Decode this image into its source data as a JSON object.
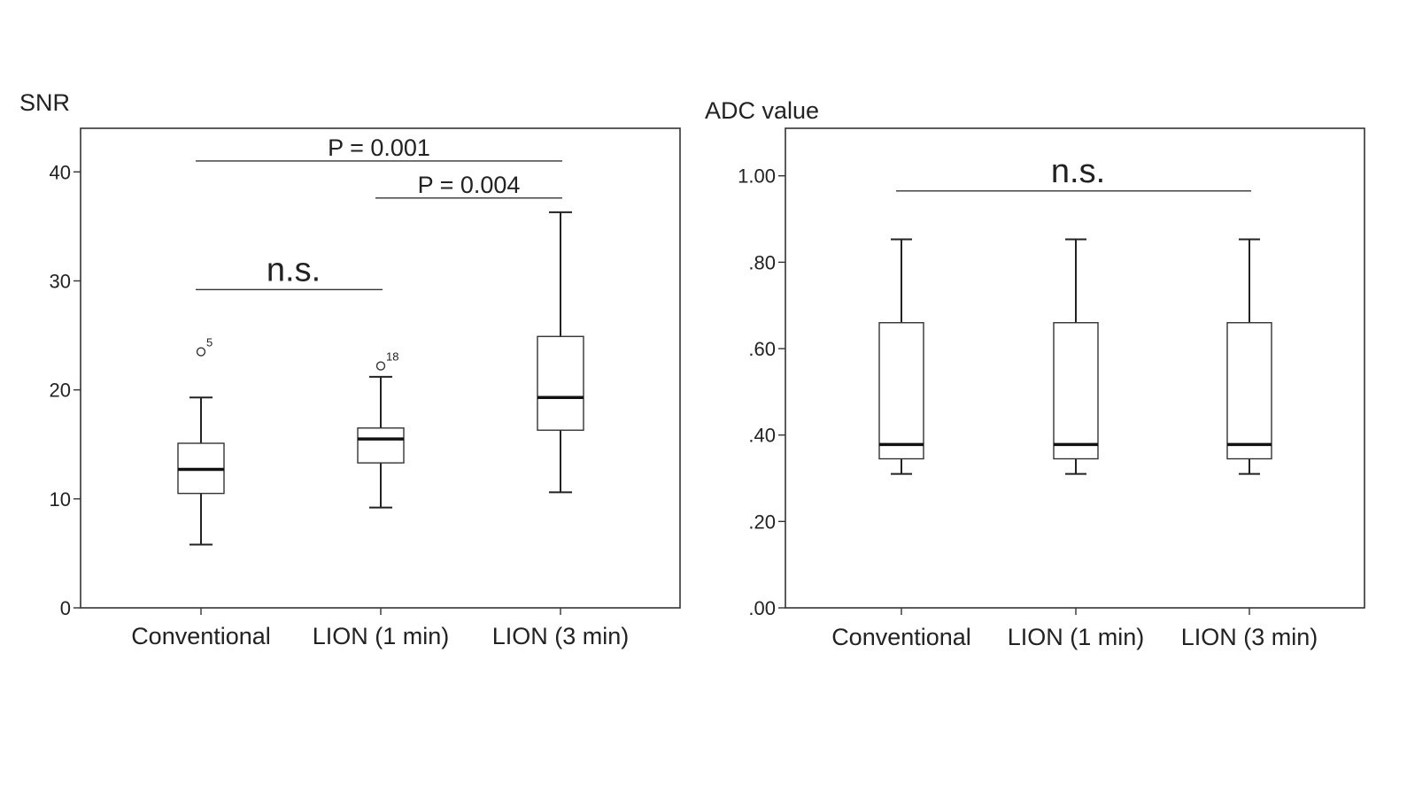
{
  "chart_data": [
    {
      "type": "box",
      "ylabel": "SNR",
      "ylim": [
        0,
        44
      ],
      "yticks": [
        0,
        10,
        20,
        30,
        40
      ],
      "ytick_labels": [
        "0",
        "10",
        "20",
        "30",
        "40"
      ],
      "categories": [
        "Conventional",
        "LION (1 min)",
        "LION (3 min)"
      ],
      "boxes": [
        {
          "min": 5.8,
          "q1": 10.5,
          "median": 12.7,
          "q3": 15.1,
          "max": 19.3,
          "outliers": [
            {
              "value": 23.5,
              "label": "5"
            }
          ]
        },
        {
          "min": 9.2,
          "q1": 13.3,
          "median": 15.5,
          "q3": 16.5,
          "max": 21.2,
          "outliers": [
            {
              "value": 22.2,
              "label": "18"
            }
          ]
        },
        {
          "min": 10.6,
          "q1": 16.3,
          "median": 19.3,
          "q3": 24.9,
          "max": 36.3,
          "outliers": []
        }
      ],
      "annotations": [
        {
          "text": "P = 0.001",
          "from": 0,
          "to": 2,
          "y": 41.0
        },
        {
          "text": "P = 0.004",
          "from": 1,
          "to": 2,
          "y": 37.6
        },
        {
          "text": "n.s.",
          "from": 0,
          "to": 1,
          "y": 29.2
        }
      ]
    },
    {
      "type": "box",
      "ylabel": "ADC value",
      "ylim": [
        0,
        1.11
      ],
      "yticks": [
        0,
        0.2,
        0.4,
        0.6,
        0.8,
        1.0
      ],
      "ytick_labels": [
        ".00",
        ".20",
        ".40",
        ".60",
        ".80",
        "1.00"
      ],
      "categories": [
        "Conventional",
        "LION (1 min)",
        "LION (3 min)"
      ],
      "boxes": [
        {
          "min": 0.31,
          "q1": 0.345,
          "median": 0.378,
          "q3": 0.66,
          "max": 0.853,
          "outliers": []
        },
        {
          "min": 0.31,
          "q1": 0.345,
          "median": 0.378,
          "q3": 0.66,
          "max": 0.853,
          "outliers": []
        },
        {
          "min": 0.31,
          "q1": 0.345,
          "median": 0.378,
          "q3": 0.66,
          "max": 0.853,
          "outliers": []
        }
      ],
      "annotations": [
        {
          "text": "n.s.",
          "from": 0,
          "to": 2,
          "y": 0.965
        }
      ]
    }
  ]
}
